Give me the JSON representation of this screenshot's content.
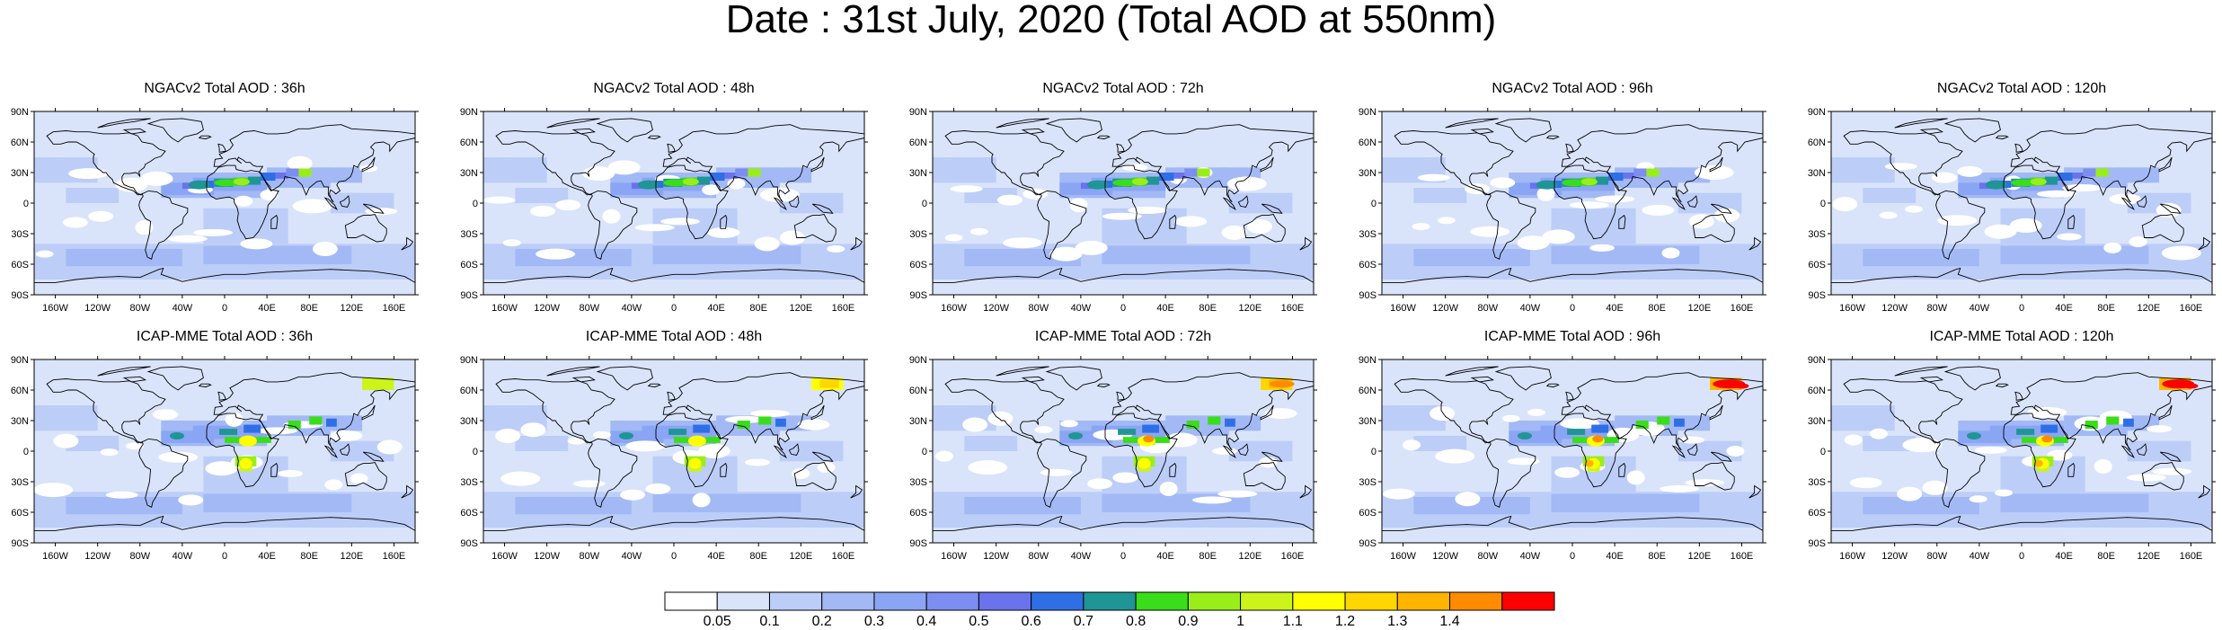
{
  "title": "Date : 31st July, 2020 (Total AOD at 550nm)",
  "lat_ticks": [
    "90N",
    "60N",
    "30N",
    "0",
    "30S",
    "60S",
    "90S"
  ],
  "lon_ticks": [
    "160W",
    "120W",
    "80W",
    "40W",
    "0",
    "40E",
    "80E",
    "120E",
    "160E"
  ],
  "panels": [
    {
      "title": "NGACv2 Total AOD : 36h",
      "model": "NGACv2",
      "hour": 36,
      "smoke": 0
    },
    {
      "title": "NGACv2 Total AOD : 48h",
      "model": "NGACv2",
      "hour": 48,
      "smoke": 0
    },
    {
      "title": "NGACv2 Total AOD : 72h",
      "model": "NGACv2",
      "hour": 72,
      "smoke": 0
    },
    {
      "title": "NGACv2 Total AOD : 96h",
      "model": "NGACv2",
      "hour": 96,
      "smoke": 0
    },
    {
      "title": "NGACv2 Total AOD : 120h",
      "model": "NGACv2",
      "hour": 120,
      "smoke": 0
    },
    {
      "title": "ICAP-MME Total AOD : 36h",
      "model": "ICAP-MME",
      "hour": 36,
      "smoke": 1
    },
    {
      "title": "ICAP-MME Total AOD : 48h",
      "model": "ICAP-MME",
      "hour": 48,
      "smoke": 2
    },
    {
      "title": "ICAP-MME Total AOD : 72h",
      "model": "ICAP-MME",
      "hour": 72,
      "smoke": 3
    },
    {
      "title": "ICAP-MME Total AOD : 96h",
      "model": "ICAP-MME",
      "hour": 96,
      "smoke": 4
    },
    {
      "title": "ICAP-MME Total AOD : 120h",
      "model": "ICAP-MME",
      "hour": 120,
      "smoke": 4
    }
  ],
  "colorbar": {
    "labels": [
      "0.05",
      "0.1",
      "0.2",
      "0.3",
      "0.4",
      "0.5",
      "0.6",
      "0.7",
      "0.8",
      "0.9",
      "1",
      "1.1",
      "1.2",
      "1.3",
      "1.4"
    ],
    "colors": [
      "#ffffff",
      "#d9e4fb",
      "#bccdf8",
      "#a2b9f6",
      "#8aa5f4",
      "#7c8ef0",
      "#6a73ec",
      "#2f6fe6",
      "#1f9595",
      "#39dd19",
      "#99ee19",
      "#ccf41a",
      "#ffff00",
      "#ffd600",
      "#ffb400",
      "#ff8c00",
      "#ff0000"
    ]
  }
}
